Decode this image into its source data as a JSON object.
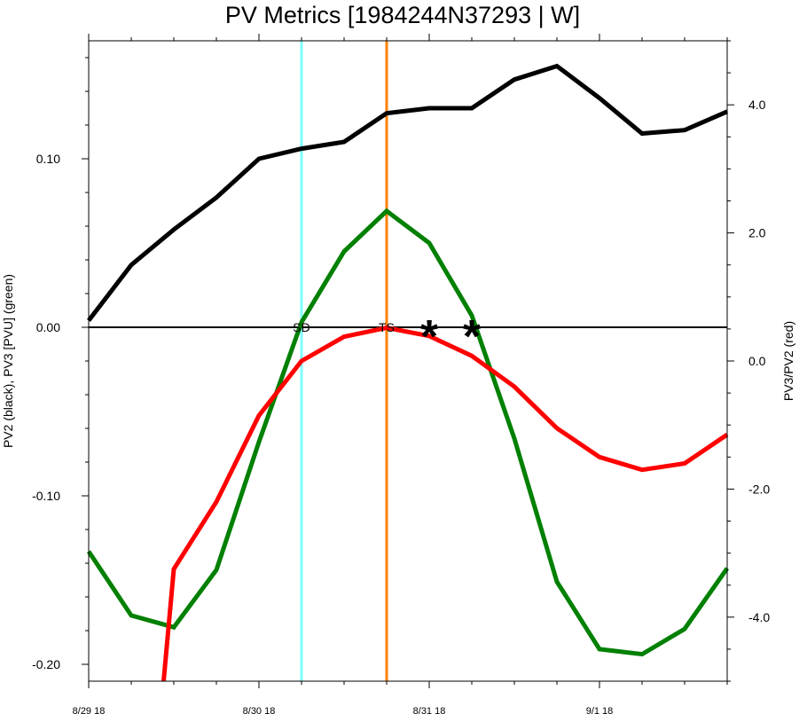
{
  "chart_data": {
    "type": "line",
    "title": "PV Metrics [1984244N37293 | W]",
    "ylabel_left": "PV2 (black), PV3 [PVU] (green)",
    "ylabel_right": "PV3/PV2 (red)",
    "xlim": [
      0,
      3.75
    ],
    "ylim_left": [
      -0.21,
      0.17
    ],
    "ylim_right": [
      -5.0,
      5.0
    ],
    "x_ticks": [
      {
        "x": 0,
        "label": "8/29 18"
      },
      {
        "x": 1,
        "label": "8/30 18"
      },
      {
        "x": 2,
        "label": "8/31 18"
      },
      {
        "x": 3,
        "label": "9/1 18"
      }
    ],
    "y_ticks_left": [
      {
        "v": 0.1,
        "label": "0.10"
      },
      {
        "v": 0.0,
        "label": "0.00"
      },
      {
        "v": -0.1,
        "label": "-0.10"
      },
      {
        "v": -0.2,
        "label": "-0.20"
      }
    ],
    "y_ticks_right": [
      {
        "v": 4.0,
        "label": "4.0"
      },
      {
        "v": 2.0,
        "label": "2.0"
      },
      {
        "v": 0.0,
        "label": "0.0"
      },
      {
        "v": -2.0,
        "label": "-2.0"
      },
      {
        "v": -4.0,
        "label": "-4.0"
      }
    ],
    "series": [
      {
        "color": "#000000",
        "axis": "left",
        "x": [
          0,
          0.25,
          0.5,
          0.75,
          1.0,
          1.25,
          1.5,
          1.75,
          2.0,
          2.25,
          2.5,
          2.75,
          3.0,
          3.25,
          3.5,
          3.75
        ],
        "y": [
          0.004,
          0.037,
          0.058,
          0.077,
          0.1,
          0.106,
          0.11,
          0.127,
          0.13,
          0.13,
          0.147,
          0.155,
          0.136,
          0.115,
          0.117,
          0.128
        ]
      },
      {
        "color": "#008000",
        "axis": "left",
        "x": [
          0,
          0.25,
          0.5,
          0.75,
          1.0,
          1.25,
          1.5,
          1.75,
          2.0,
          2.25,
          2.5,
          2.75,
          3.0,
          3.25,
          3.5,
          3.75
        ],
        "y": [
          -0.133,
          -0.171,
          -0.178,
          -0.144,
          -0.068,
          0.003,
          0.045,
          0.069,
          0.05,
          0.007,
          -0.066,
          -0.151,
          -0.191,
          -0.194,
          -0.179,
          -0.143
        ]
      },
      {
        "color": "#ff0000",
        "axis": "right",
        "x": [
          0.44,
          0.5,
          0.75,
          1.0,
          1.25,
          1.5,
          1.75,
          2.0,
          2.25,
          2.5,
          2.75,
          3.0,
          3.25,
          3.5,
          3.75
        ],
        "y": [
          -5.0,
          -3.25,
          -2.2,
          -0.85,
          0.0,
          0.38,
          0.52,
          0.39,
          0.08,
          -0.4,
          -1.05,
          -1.5,
          -1.7,
          -1.6,
          -1.15
        ]
      }
    ],
    "vlines": [
      {
        "x": 1.25,
        "color": "#7fffff",
        "label": "SD"
      },
      {
        "x": 1.75,
        "color": "#ff8000",
        "label": "TS"
      }
    ],
    "hline": {
      "y": 0.0,
      "color": "#000000"
    },
    "markers": [
      {
        "x": 2.0,
        "y": 0.0,
        "symbol": "*"
      },
      {
        "x": 2.25,
        "y": 0.0,
        "symbol": "*"
      }
    ]
  }
}
